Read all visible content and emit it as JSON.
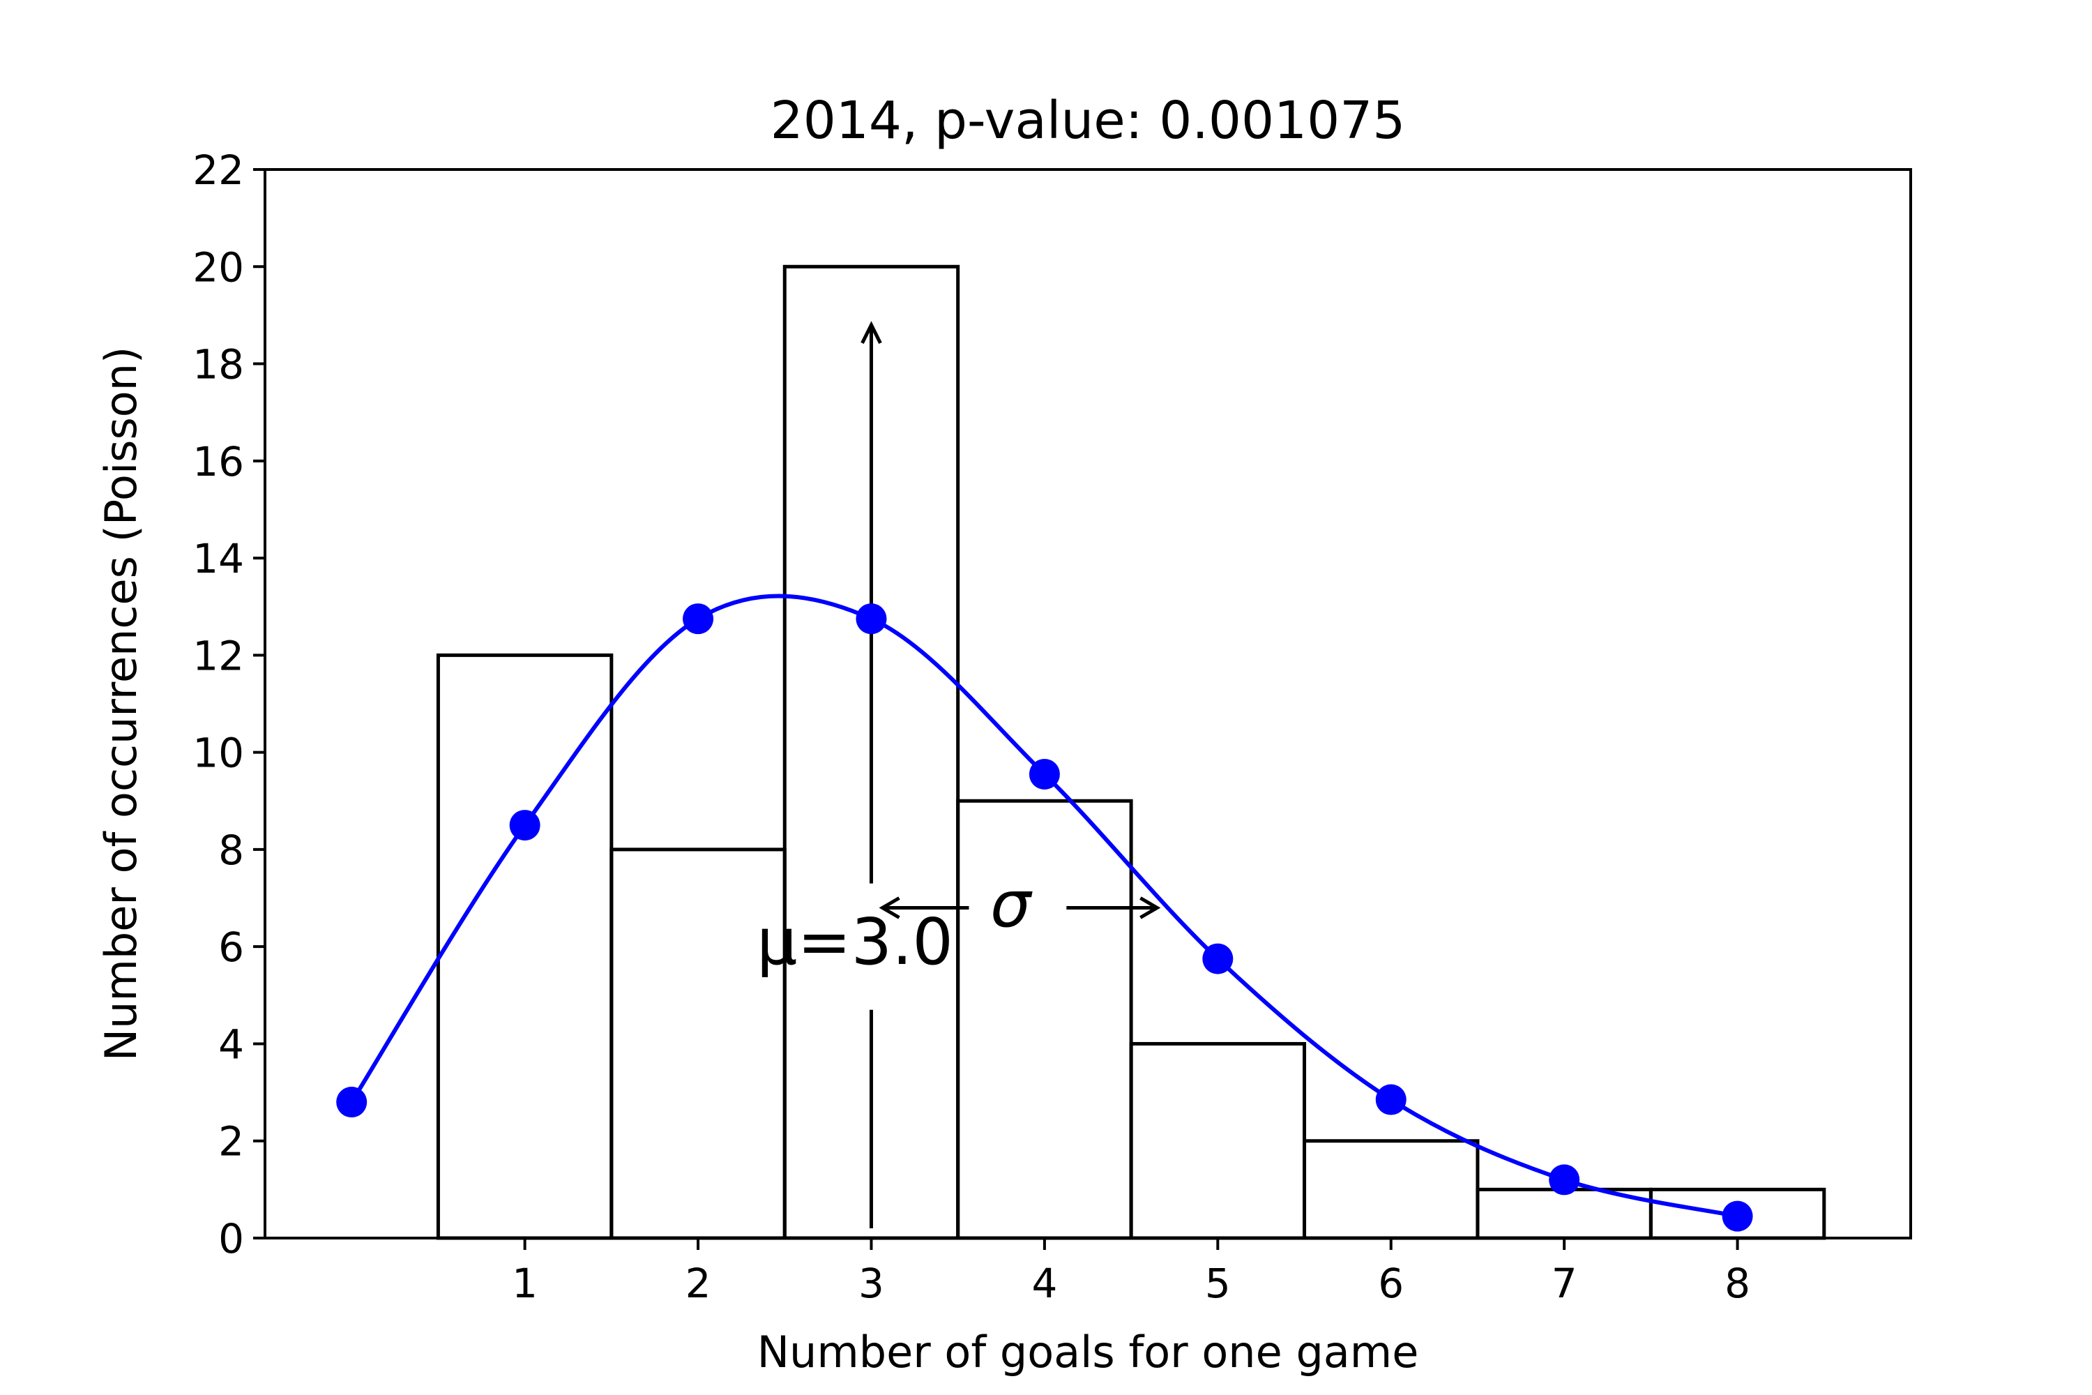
{
  "chart_data": {
    "type": "bar",
    "title": "2014, p-value: 0.001075",
    "xlabel": "Number of goals for one game",
    "ylabel": "Number of occurrences (Poisson)",
    "xlim": [
      -0.5,
      9.0
    ],
    "ylim": [
      0,
      22
    ],
    "x_ticks": [
      1,
      2,
      3,
      4,
      5,
      6,
      7,
      8
    ],
    "y_ticks": [
      0,
      2,
      4,
      6,
      8,
      10,
      12,
      14,
      16,
      18,
      20,
      22
    ],
    "grid": false,
    "histogram": {
      "color": "#000000",
      "bins": [
        {
          "x": 1,
          "value": 12
        },
        {
          "x": 2,
          "value": 8
        },
        {
          "x": 3,
          "value": 20
        },
        {
          "x": 4,
          "value": 9
        },
        {
          "x": 5,
          "value": 4
        },
        {
          "x": 6,
          "value": 2
        },
        {
          "x": 7,
          "value": 1
        },
        {
          "x": 8,
          "value": 1
        }
      ]
    },
    "fit_curve": {
      "color": "#0000ff",
      "points": [
        {
          "x": 0,
          "y": 2.8
        },
        {
          "x": 1,
          "y": 8.5
        },
        {
          "x": 2,
          "y": 12.75
        },
        {
          "x": 3,
          "y": 12.75
        },
        {
          "x": 4,
          "y": 9.55
        },
        {
          "x": 5,
          "y": 5.75
        },
        {
          "x": 6,
          "y": 2.85
        },
        {
          "x": 7,
          "y": 1.2
        },
        {
          "x": 8,
          "y": 0.45
        }
      ]
    },
    "annotations": {
      "mean_label": "μ=3.0",
      "sigma_label": "σ",
      "mean_line": {
        "x": 3.0,
        "y_from": 0,
        "y_to": 18.8
      },
      "sigma_arrow": {
        "y": 6.8,
        "x_from": 3.0,
        "x_to": 4.65
      }
    }
  }
}
